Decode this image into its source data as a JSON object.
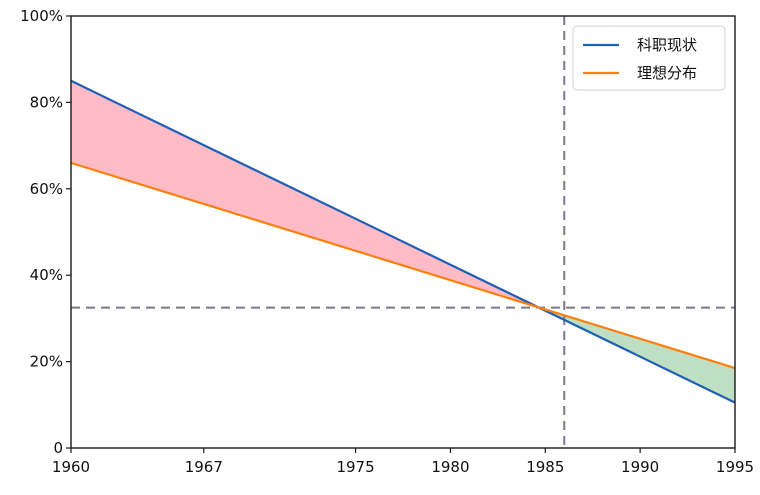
{
  "chart_data": {
    "type": "line",
    "x": [
      1960,
      1995
    ],
    "series": [
      {
        "name": "科职现状",
        "values": [
          85,
          10.5
        ],
        "color": "#1f5fb4"
      },
      {
        "name": "理想分布",
        "values": [
          66,
          18.5
        ],
        "color": "#ff7f0e"
      }
    ],
    "fill_between": [
      {
        "range": "before",
        "color": "#ffbcc6"
      },
      {
        "range": "after",
        "color": "#bfdfc4"
      }
    ],
    "reference_lines": {
      "x": 1986,
      "y": 32.5,
      "style": "dashed",
      "color": "#7a7a8a"
    },
    "xlim": [
      1960,
      1995
    ],
    "ylim": [
      0,
      100
    ],
    "x_ticks": [
      {
        "value": 1960,
        "label": "1960"
      },
      {
        "value": 1967,
        "label": "1967"
      },
      {
        "value": 1975,
        "label": "1975"
      },
      {
        "value": 1980,
        "label": "1980"
      },
      {
        "value": 1985,
        "label": "1985"
      },
      {
        "value": 1990,
        "label": "1990"
      },
      {
        "value": 1995,
        "label": "1995"
      }
    ],
    "y_ticks": [
      {
        "value": 0,
        "label": "0"
      },
      {
        "value": 20,
        "label": "20%"
      },
      {
        "value": 40,
        "label": "40%"
      },
      {
        "value": 60,
        "label": "60%"
      },
      {
        "value": 80,
        "label": "80%"
      },
      {
        "value": 100,
        "label": "100%"
      }
    ],
    "legend_position": "top-right",
    "grid": false
  }
}
